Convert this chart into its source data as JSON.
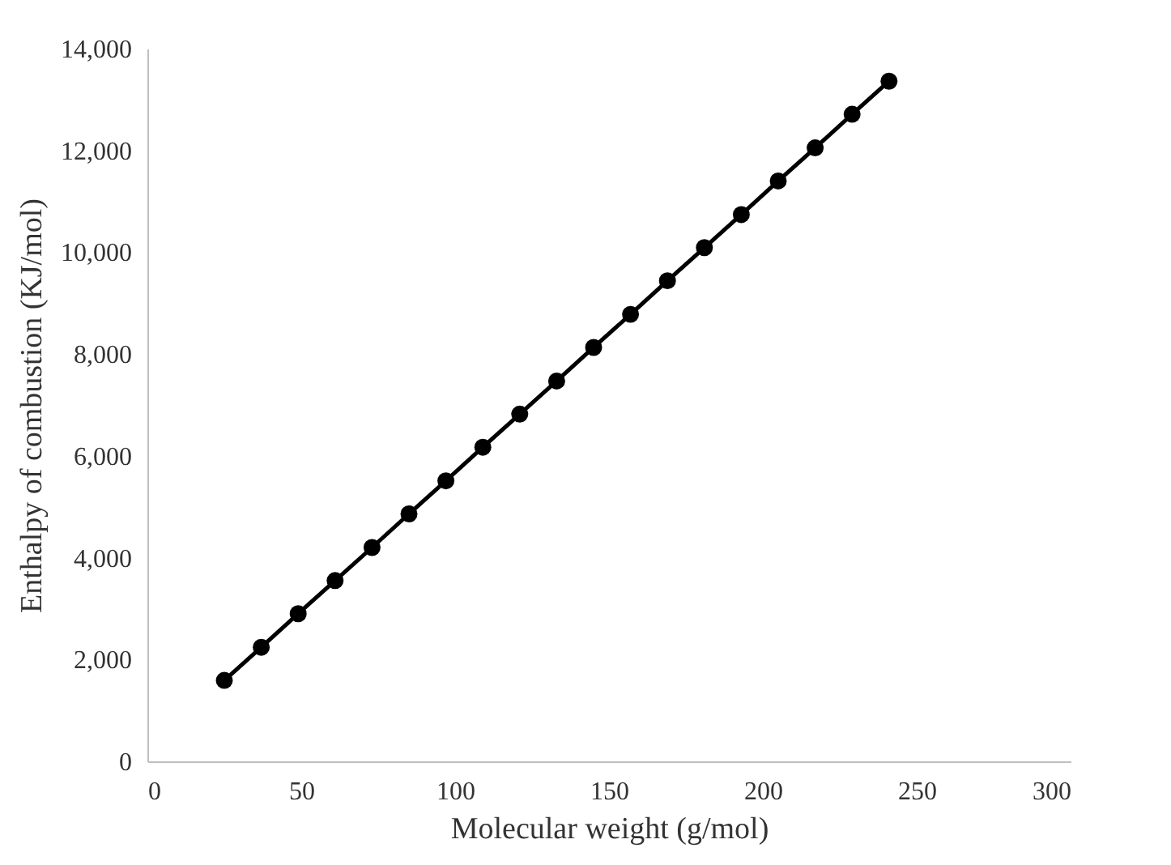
{
  "chart_data": {
    "type": "line",
    "xlabel": "Molecular weight (g/mol)",
    "ylabel": "Enthalpy of combustion (KJ/mol)",
    "x": [
      25,
      37,
      49,
      61,
      73,
      85,
      97,
      109,
      121,
      133,
      145,
      157,
      169,
      181,
      193,
      205,
      217,
      229,
      241
    ],
    "series": [
      {
        "color": "#000000",
        "values": [
          1590,
          2240,
          2900,
          3550,
          4200,
          4860,
          5510,
          6170,
          6820,
          7470,
          8130,
          8780,
          9440,
          10090,
          10740,
          11400,
          12050,
          12710,
          13360
        ]
      }
    ],
    "xlim": [
      0,
      300
    ],
    "xticks": [
      0,
      50,
      100,
      150,
      200,
      250,
      300
    ],
    "ylim": [
      0,
      14000
    ],
    "yticks": [
      0,
      {
        "value": 2000,
        "label": "2,000"
      },
      {
        "value": 4000,
        "label": "4,000"
      },
      {
        "value": 6000,
        "label": "6,000"
      },
      {
        "value": 8000,
        "label": "8,000"
      },
      {
        "value": 10000,
        "label": "10,000"
      },
      {
        "value": 12000,
        "label": "12,000"
      },
      {
        "value": 14000,
        "label": "14,000"
      }
    ],
    "grid": false,
    "marker": "circle",
    "line_style": "solid"
  }
}
